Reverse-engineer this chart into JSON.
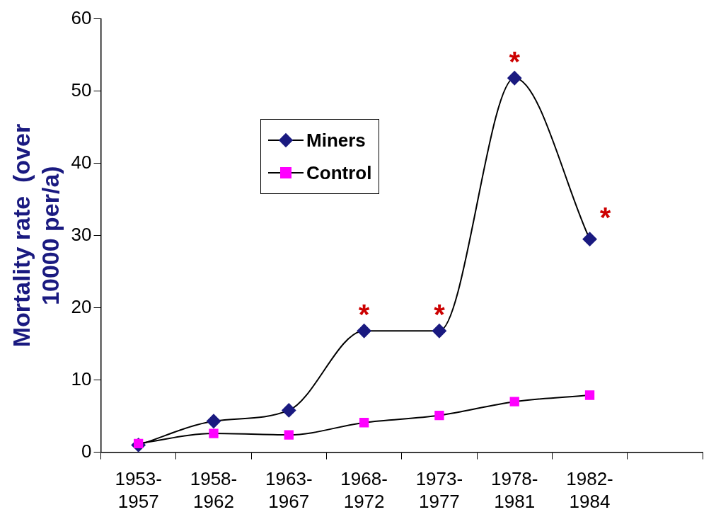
{
  "chart_data": {
    "type": "line",
    "ylabel": "Mortality rate  (over 10000 per/a)",
    "categories": [
      "1953-1957",
      "1958-1962",
      "1963-1967",
      "1968-1972",
      "1973-1977",
      "1978-1981",
      "1982-1984",
      null
    ],
    "series": [
      {
        "name": "Miners",
        "color": "#1a1a80",
        "marker": "diamond",
        "values": [
          1.0,
          4.3,
          5.8,
          16.8,
          16.8,
          51.8,
          29.5,
          null
        ]
      },
      {
        "name": "Control",
        "color": "#ff00ff",
        "marker": "square",
        "values": [
          1.2,
          2.6,
          2.4,
          4.1,
          5.1,
          7.0,
          7.9,
          null
        ]
      }
    ],
    "ylim": [
      0,
      60
    ],
    "yticks": [
      0,
      10,
      20,
      30,
      40,
      50,
      60
    ],
    "grid": false,
    "legend": "top left",
    "annotations": [
      {
        "text": "*",
        "x": "1968-1972",
        "y": 16.8
      },
      {
        "text": "*",
        "x": "1973-1977",
        "y": 16.8
      },
      {
        "text": "*",
        "x": "1978-1981",
        "y": 51.8
      },
      {
        "text": "*",
        "x": "1982-1984",
        "y": 29.5
      }
    ]
  }
}
